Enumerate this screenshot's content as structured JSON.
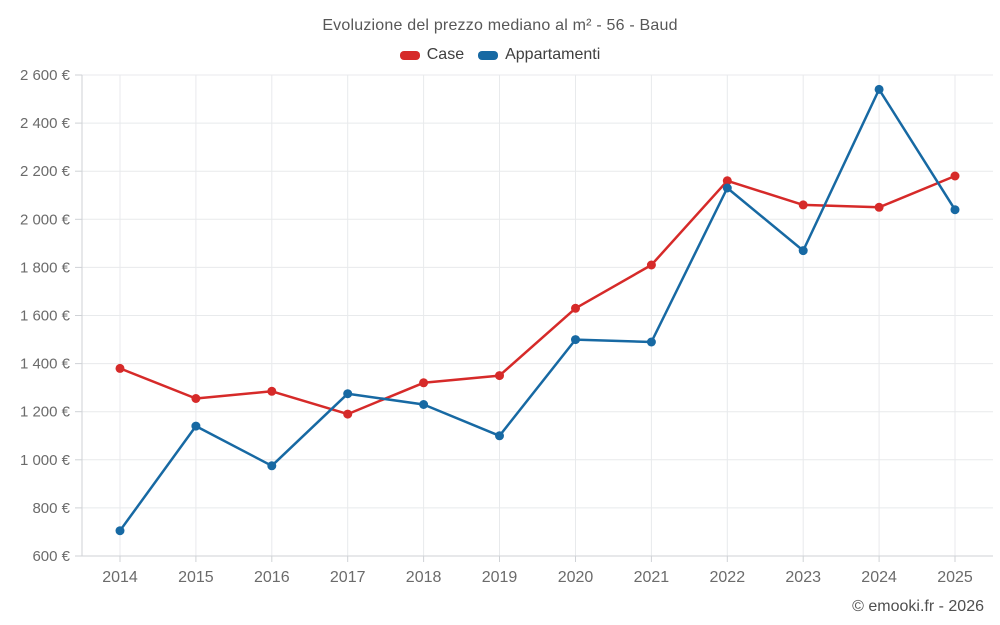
{
  "title": "Evoluzione del prezzo mediano al m² - 56 - Baud",
  "footer": "© emooki.fr - 2026",
  "colors": {
    "background": "#ffffff",
    "grid": "#e8eaec",
    "axis": "#cfd2d6",
    "title_text": "#575757",
    "axis_text": "#6b6b6b",
    "legend_text": "#3f3f3f",
    "footer_text": "#4f4f4f",
    "case_red": "#d62a29",
    "appartamenti_blue": "#1769a3"
  },
  "chart_data": {
    "type": "line",
    "title": "Evoluzione del prezzo mediano al m² - 56 - Baud",
    "xlabel": "",
    "ylabel": "",
    "categories": [
      "2014",
      "2015",
      "2016",
      "2017",
      "2018",
      "2019",
      "2020",
      "2021",
      "2022",
      "2023",
      "2024",
      "2025"
    ],
    "series": [
      {
        "name": "Case",
        "color": "#d62a29",
        "values": [
          1380,
          1255,
          1285,
          1190,
          1320,
          1350,
          1630,
          1810,
          2160,
          2060,
          2050,
          2180
        ]
      },
      {
        "name": "Appartamenti",
        "color": "#1769a3",
        "values": [
          705,
          1140,
          975,
          1275,
          1230,
          1100,
          1500,
          1490,
          2130,
          1870,
          2540,
          2040
        ]
      }
    ],
    "ylim": [
      600,
      2600
    ],
    "y_ticks": [
      {
        "value": 600,
        "label": "600 €"
      },
      {
        "value": 800,
        "label": "800 €"
      },
      {
        "value": 1000,
        "label": "1 000 €"
      },
      {
        "value": 1200,
        "label": "1 200 €"
      },
      {
        "value": 1400,
        "label": "1 400 €"
      },
      {
        "value": 1600,
        "label": "1 600 €"
      },
      {
        "value": 1800,
        "label": "1 800 €"
      },
      {
        "value": 2000,
        "label": "2 000 €"
      },
      {
        "value": 2200,
        "label": "2 200 €"
      },
      {
        "value": 2400,
        "label": "2 400 €"
      },
      {
        "value": 2600,
        "label": "2 600 €"
      }
    ],
    "grid": true,
    "legend_position": "top",
    "currency_suffix": "€"
  }
}
